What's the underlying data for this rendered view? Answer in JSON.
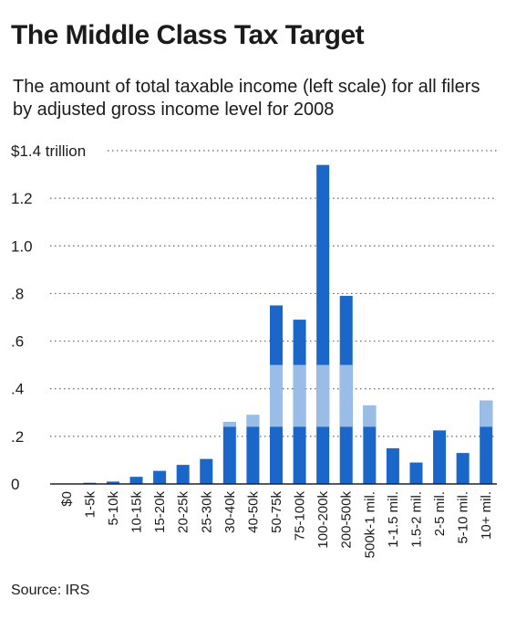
{
  "chart_data": {
    "type": "bar",
    "title": "The Middle Class Tax Target",
    "subtitle": "The amount of total taxable income (left scale) for all filers by adjusted gross income level for 2008",
    "ylabel": "",
    "xlabel": "",
    "ylim": [
      0,
      1.4
    ],
    "y_ticks": [
      {
        "value": 0,
        "label": "0"
      },
      {
        "value": 0.2,
        "label": ".2"
      },
      {
        "value": 0.4,
        "label": ".4"
      },
      {
        "value": 0.6,
        "label": ".6"
      },
      {
        "value": 0.8,
        "label": ".8"
      },
      {
        "value": 1.0,
        "label": "1.0"
      },
      {
        "value": 1.2,
        "label": "1.2"
      },
      {
        "value": 1.4,
        "label": "$1.4 trillion"
      }
    ],
    "grid": true,
    "categories": [
      "$0",
      "1-5k",
      "5-10k",
      "10-15k",
      "15-20k",
      "20-25k",
      "25-30k",
      "30-40k",
      "40-50k",
      "50-75k",
      "75-100k",
      "100-200k",
      "200-500k",
      "500k-1 mil.",
      "1-1.5 mil.",
      "1.5-2 mil.",
      "2-5 mil.",
      "5-10 mil.",
      "10+ mil."
    ],
    "values": [
      0.0,
      0.005,
      0.01,
      0.03,
      0.055,
      0.08,
      0.105,
      0.26,
      0.29,
      0.75,
      0.69,
      1.34,
      0.79,
      0.33,
      0.15,
      0.09,
      0.225,
      0.13,
      0.35
    ],
    "highlight_band": [
      0.24,
      0.5
    ],
    "colors": {
      "bar": "#1a67c9",
      "band": "#99bde6",
      "grid": "#666666",
      "axis": "#222222"
    }
  },
  "source": "Source: IRS"
}
